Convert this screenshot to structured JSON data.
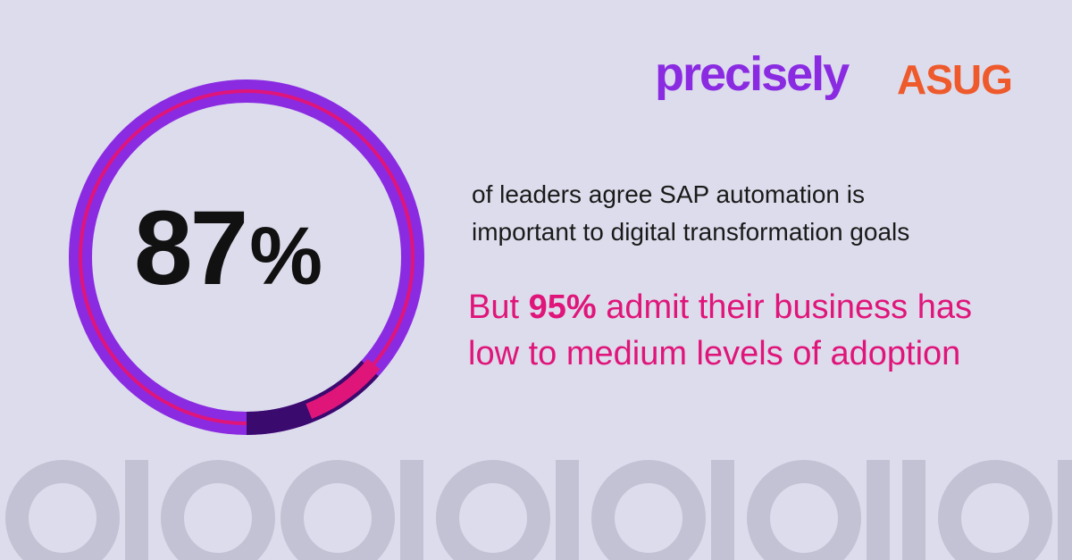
{
  "stat": {
    "value": "87",
    "unit": "%",
    "fraction": 0.87
  },
  "logos": {
    "precisely": "precisely",
    "asug": "ASUG"
  },
  "description": {
    "line1": "of leaders agree SAP automation is",
    "line2": "important to digital transformation goals"
  },
  "callout": {
    "prefix": "But",
    "highlight": "95%",
    "line1_rest": "admit their business has",
    "line2": "low to medium levels of adoption"
  },
  "binary_pattern": "0100101010110110",
  "colors": {
    "background": "#dcdcec",
    "ring_purple": "#8a2be2",
    "ring_pink": "#e0157a",
    "ring_dark": "#3a0a6e",
    "binary": "#c2c2d4",
    "precisely": "#8a2be2",
    "asug": "#ee5a2b"
  }
}
